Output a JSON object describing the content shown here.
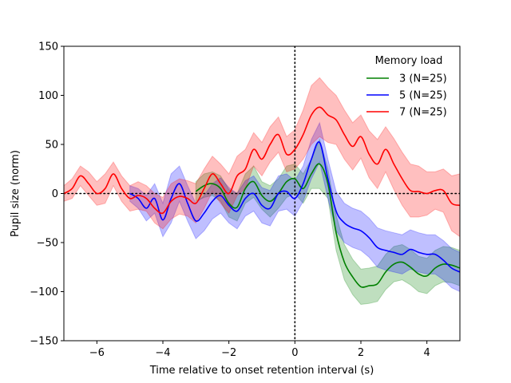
{
  "chart_data": {
    "type": "line",
    "xlabel": "Time relative to onset retention interval (s)",
    "ylabel": "Pupil size (norm)",
    "xlim": [
      -7,
      5
    ],
    "ylim": [
      -150,
      150
    ],
    "xticks": [
      -6,
      -4,
      -2,
      0,
      2,
      4
    ],
    "xtick_labels": [
      "−6",
      "−4",
      "−2",
      "0",
      "2",
      "4"
    ],
    "yticks": [
      -150,
      -100,
      -50,
      0,
      50,
      100,
      150
    ],
    "ytick_labels": [
      "−150",
      "−100",
      "−50",
      "0",
      "50",
      "100",
      "150"
    ],
    "reference_lines": [
      {
        "orientation": "horizontal",
        "value": 0,
        "style": "dotted",
        "color": "#000000"
      },
      {
        "orientation": "vertical",
        "value": 0,
        "style": "dotted",
        "color": "#000000"
      }
    ],
    "legend": {
      "title": "Memory load",
      "placement": "top-right"
    },
    "series": [
      {
        "name": "3 (N=25)",
        "color": "#008000",
        "x": [
          -3.0,
          -2.75,
          -2.5,
          -2.25,
          -2.0,
          -1.75,
          -1.5,
          -1.25,
          -1.0,
          -0.75,
          -0.5,
          -0.25,
          0.0,
          0.25,
          0.5,
          0.75,
          1.0,
          1.25,
          1.5,
          1.75,
          2.0,
          2.25,
          2.5,
          2.75,
          3.0,
          3.25,
          3.5,
          3.75,
          4.0,
          4.25,
          4.5,
          4.75,
          5.0
        ],
        "y": [
          2,
          8,
          10,
          5,
          -10,
          -14,
          5,
          12,
          -2,
          -8,
          0,
          12,
          15,
          5,
          20,
          30,
          10,
          -40,
          -70,
          -85,
          -95,
          -94,
          -92,
          -80,
          -72,
          -70,
          -75,
          -82,
          -84,
          -76,
          -72,
          -73,
          -76
        ],
        "upper": [
          12,
          20,
          22,
          18,
          4,
          0,
          20,
          28,
          12,
          8,
          15,
          28,
          30,
          20,
          35,
          55,
          25,
          -22,
          -52,
          -67,
          -77,
          -76,
          -74,
          -62,
          -54,
          -52,
          -57,
          -64,
          -66,
          -58,
          -54,
          -55,
          -58
        ],
        "lower": [
          -8,
          -4,
          -2,
          -8,
          -24,
          -28,
          -10,
          -4,
          -16,
          -24,
          -15,
          -4,
          0,
          -10,
          5,
          5,
          -5,
          -58,
          -88,
          -103,
          -113,
          -112,
          -110,
          -98,
          -90,
          -88,
          -93,
          -100,
          -102,
          -94,
          -90,
          -91,
          -94
        ]
      },
      {
        "name": "5 (N=25)",
        "color": "#0000ff",
        "x": [
          -5.0,
          -4.75,
          -4.5,
          -4.25,
          -4.0,
          -3.75,
          -3.5,
          -3.25,
          -3.0,
          -2.75,
          -2.5,
          -2.25,
          -2.0,
          -1.75,
          -1.5,
          -1.25,
          -1.0,
          -0.75,
          -0.5,
          -0.25,
          0.0,
          0.25,
          0.5,
          0.75,
          1.0,
          1.25,
          1.5,
          1.75,
          2.0,
          2.25,
          2.5,
          2.75,
          3.0,
          3.25,
          3.5,
          3.75,
          4.0,
          4.25,
          4.5,
          4.75,
          5.0
        ],
        "y": [
          0,
          -5,
          -15,
          -5,
          -27,
          -5,
          10,
          -10,
          -28,
          -20,
          -8,
          -2,
          -12,
          -18,
          -5,
          0,
          -12,
          -15,
          0,
          2,
          -5,
          10,
          35,
          52,
          15,
          -18,
          -30,
          -35,
          -38,
          -45,
          -55,
          -58,
          -60,
          -62,
          -57,
          -60,
          -62,
          -62,
          -68,
          -76,
          -80
        ],
        "upper": [
          8,
          5,
          -2,
          10,
          -10,
          20,
          28,
          8,
          -10,
          -2,
          10,
          16,
          6,
          0,
          13,
          18,
          6,
          3,
          18,
          20,
          13,
          28,
          55,
          72,
          35,
          2,
          -10,
          -15,
          -18,
          -25,
          -35,
          -38,
          -40,
          -42,
          -37,
          -40,
          -42,
          -42,
          -48,
          -56,
          -60
        ],
        "lower": [
          -8,
          -15,
          -28,
          -20,
          -44,
          -30,
          -8,
          -28,
          -46,
          -38,
          -26,
          -20,
          -30,
          -36,
          -23,
          -18,
          -30,
          -33,
          -18,
          -16,
          -23,
          -8,
          15,
          32,
          -5,
          -38,
          -50,
          -55,
          -58,
          -65,
          -75,
          -78,
          -80,
          -82,
          -77,
          -80,
          -82,
          -82,
          -88,
          -96,
          -100
        ]
      },
      {
        "name": "7 (N=25)",
        "color": "#ff0000",
        "x": [
          -7.0,
          -6.75,
          -6.5,
          -6.25,
          -6.0,
          -5.75,
          -5.5,
          -5.25,
          -5.0,
          -4.75,
          -4.5,
          -4.25,
          -4.0,
          -3.75,
          -3.5,
          -3.25,
          -3.0,
          -2.75,
          -2.5,
          -2.25,
          -2.0,
          -1.75,
          -1.5,
          -1.25,
          -1.0,
          -0.75,
          -0.5,
          -0.25,
          0.0,
          0.25,
          0.5,
          0.75,
          1.0,
          1.25,
          1.5,
          1.75,
          2.0,
          2.25,
          2.5,
          2.75,
          3.0,
          3.25,
          3.5,
          3.75,
          4.0,
          4.25,
          4.5,
          4.75,
          5.0
        ],
        "y": [
          0,
          5,
          18,
          10,
          0,
          5,
          20,
          5,
          -5,
          -2,
          -5,
          -15,
          -20,
          -8,
          -3,
          -5,
          -10,
          5,
          20,
          10,
          0,
          18,
          25,
          45,
          35,
          50,
          60,
          40,
          45,
          60,
          80,
          88,
          80,
          75,
          60,
          48,
          58,
          40,
          30,
          45,
          30,
          15,
          3,
          2,
          0,
          3,
          3,
          -10,
          -12
        ],
        "upper": [
          8,
          15,
          28,
          22,
          12,
          20,
          32,
          18,
          8,
          12,
          8,
          0,
          -4,
          10,
          15,
          13,
          10,
          25,
          38,
          30,
          20,
          38,
          45,
          62,
          52,
          68,
          78,
          58,
          65,
          85,
          110,
          118,
          108,
          100,
          85,
          72,
          80,
          64,
          55,
          68,
          56,
          42,
          30,
          28,
          22,
          22,
          25,
          18,
          20
        ],
        "lower": [
          -8,
          -5,
          8,
          -2,
          -12,
          -10,
          8,
          -8,
          -18,
          -16,
          -18,
          -30,
          -36,
          -26,
          -21,
          -23,
          -30,
          -15,
          2,
          -10,
          -20,
          -2,
          5,
          28,
          18,
          32,
          42,
          22,
          25,
          35,
          50,
          58,
          52,
          50,
          35,
          24,
          36,
          16,
          5,
          22,
          4,
          -12,
          -24,
          -24,
          -22,
          -16,
          -19,
          -38,
          -44
        ]
      }
    ]
  }
}
